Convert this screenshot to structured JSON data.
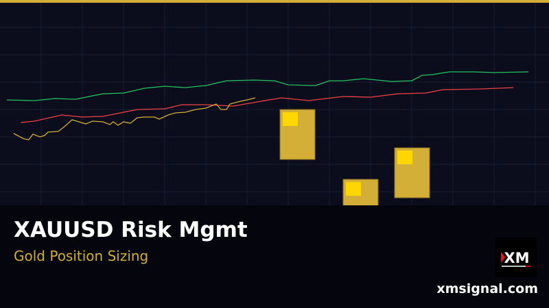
{
  "banner": {
    "title": "XAUUSD Risk Mgmt",
    "subtitle": "Gold Position Sizing",
    "website": "xmsignal.com",
    "logo_text": "XM"
  },
  "colors": {
    "accent": "#d4af37",
    "green": "#22c55e",
    "red": "#ef4444",
    "background": "#0b0c1c"
  }
}
